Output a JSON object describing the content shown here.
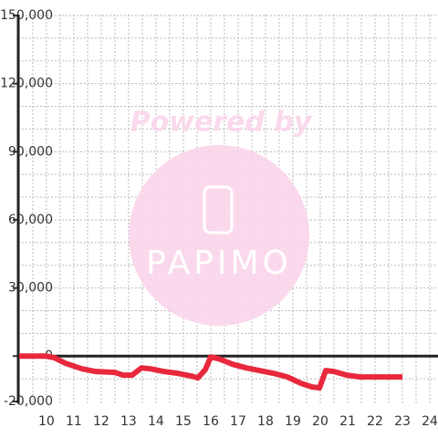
{
  "chart_data": {
    "type": "line",
    "watermark": "Powered by",
    "watermark_logo": "PAPIMO",
    "x": [
      9,
      10,
      10.3,
      10.7,
      11.3,
      11.8,
      12.5,
      12.8,
      13.13,
      13.47,
      13.8,
      14.3,
      14.8,
      15.3,
      15.53,
      15.8,
      16,
      16.3,
      16.8,
      17.3,
      17.8,
      18.3,
      18.8,
      19.3,
      19.7,
      19.97,
      20.2,
      20.5,
      20.97,
      21.47,
      21.97,
      23
    ],
    "series": [
      {
        "color": "#e8283c",
        "values": [
          0,
          0,
          -800,
          -3200,
          -5600,
          -6800,
          -7200,
          -8400,
          -8400,
          -5200,
          -5600,
          -6800,
          -7600,
          -8800,
          -9600,
          -6000,
          -400,
          -1200,
          -3600,
          -5200,
          -6400,
          -7600,
          -9200,
          -12000,
          -13600,
          -14000,
          -6400,
          -6800,
          -8400,
          -9200,
          -9200,
          -9200
        ]
      }
    ],
    "xlim": [
      8.97,
      24.3
    ],
    "ylim": [
      -20800,
      150400
    ],
    "xticks": [
      10,
      11,
      12,
      13,
      14,
      15,
      16,
      17,
      18,
      19,
      20,
      21,
      22,
      23,
      24
    ],
    "yticks": [
      {
        "value": -20000,
        "label": "-20,000"
      },
      0,
      {
        "value": 30000,
        "label": "30,000"
      },
      {
        "value": 60000,
        "label": "60,000"
      },
      {
        "value": 90000,
        "label": "90,000"
      },
      {
        "value": 120000,
        "label": "120,000"
      },
      {
        "value": 150000,
        "label": "150,000"
      }
    ],
    "y_gridlines": [
      -10000,
      10000,
      20000,
      30000,
      40000,
      50000,
      60000,
      70000,
      80000,
      90000,
      100000,
      110000,
      120000,
      130000,
      140000,
      150000
    ],
    "x_gridlines": [
      9.5,
      10,
      10.5,
      11,
      11.5,
      12,
      12.5,
      13,
      13.5,
      14,
      14.5,
      15,
      15.5,
      16,
      16.5,
      17,
      17.5,
      18,
      18.5,
      19,
      19.5,
      20,
      20.5,
      21,
      21.5,
      22,
      22.5,
      23,
      23.5,
      24
    ],
    "grid": true
  }
}
